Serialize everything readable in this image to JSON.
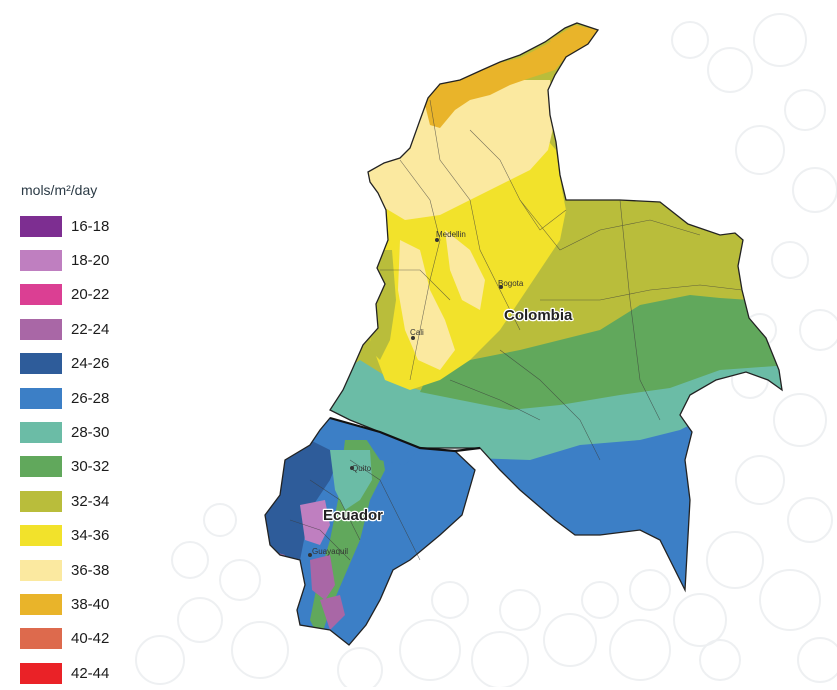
{
  "legend": {
    "title": "mols/m²/day",
    "items": [
      {
        "label": "16-18",
        "color": "#7d2e91"
      },
      {
        "label": "18-20",
        "color": "#bf7fc0"
      },
      {
        "label": "20-22",
        "color": "#db3f93"
      },
      {
        "label": "22-24",
        "color": "#a967a6"
      },
      {
        "label": "24-26",
        "color": "#2e5c9a"
      },
      {
        "label": "26-28",
        "color": "#3c7fc6"
      },
      {
        "label": "28-30",
        "color": "#6bbca6"
      },
      {
        "label": "30-32",
        "color": "#61a85c"
      },
      {
        "label": "32-34",
        "color": "#b9bd3b"
      },
      {
        "label": "34-36",
        "color": "#f2e22b"
      },
      {
        "label": "36-38",
        "color": "#fbe9a0"
      },
      {
        "label": "38-40",
        "color": "#e9b42a"
      },
      {
        "label": "40-42",
        "color": "#dd6a4d"
      },
      {
        "label": "42-44",
        "color": "#ea2227"
      }
    ]
  },
  "countries": {
    "colombia": "Colombia",
    "ecuador": "Ecuador"
  },
  "cities": {
    "medellin": "Medellin",
    "bogota": "Bogota",
    "cali": "Cali",
    "quito": "Quito",
    "guayaquil": "Guayaquil"
  }
}
